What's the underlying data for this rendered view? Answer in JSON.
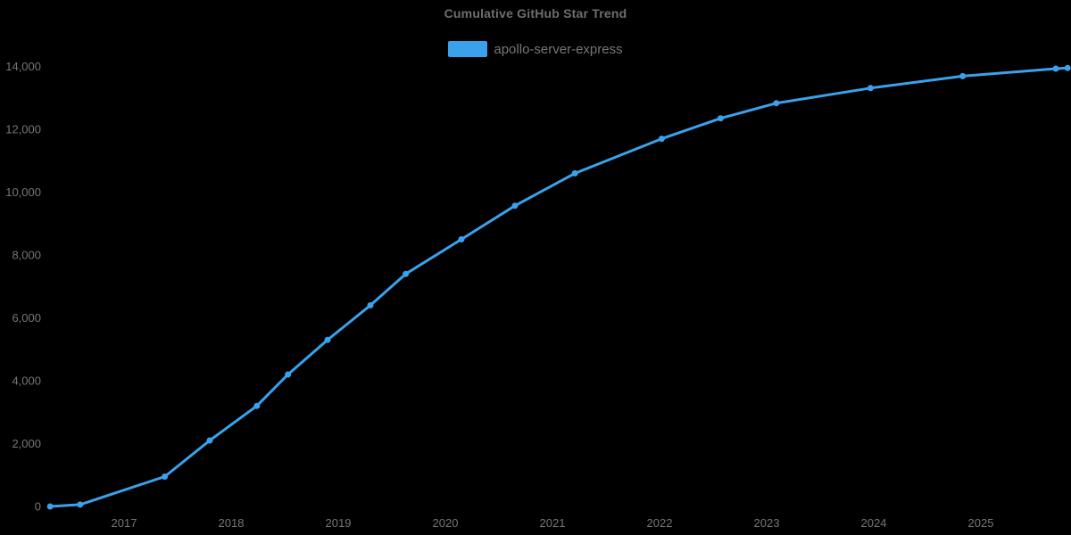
{
  "title": "Cumulative GitHub Star Trend",
  "legend": {
    "position": "top",
    "items": [
      {
        "label": "apollo-server-express",
        "color": "#3aa1ec"
      }
    ]
  },
  "colors": {
    "background": "#000000",
    "line": "#3aa1ec",
    "marker": "#3aa1ec",
    "title_text": "#6e6e6e",
    "axis_label_text": "#767676"
  },
  "chart_data": {
    "type": "line",
    "title": "Cumulative GitHub Star Trend",
    "xlabel": "",
    "ylabel": "",
    "grid": false,
    "legend_position": "top",
    "x_range": [
      2016.2,
      2025.9
    ],
    "y_range": [
      0,
      14000
    ],
    "x_ticks": [
      {
        "value": 2017,
        "label": "2017"
      },
      {
        "value": 2018,
        "label": "2018"
      },
      {
        "value": 2019,
        "label": "2019"
      },
      {
        "value": 2020,
        "label": "2020"
      },
      {
        "value": 2021,
        "label": "2021"
      },
      {
        "value": 2022,
        "label": "2022"
      },
      {
        "value": 2023,
        "label": "2023"
      },
      {
        "value": 2024,
        "label": "2024"
      },
      {
        "value": 2025,
        "label": "2025"
      }
    ],
    "y_ticks": [
      {
        "value": 0,
        "label": "0"
      },
      {
        "value": 2000,
        "label": "2,000"
      },
      {
        "value": 4000,
        "label": "4,000"
      },
      {
        "value": 6000,
        "label": "6,000"
      },
      {
        "value": 8000,
        "label": "8,000"
      },
      {
        "value": 10000,
        "label": "10,000"
      },
      {
        "value": 12000,
        "label": "12,000"
      },
      {
        "value": 14000,
        "label": "14,000"
      }
    ],
    "series": [
      {
        "name": "apollo-server-express",
        "color": "#3aa1ec",
        "points": [
          {
            "date": "2016-04",
            "x": 2016.31,
            "stars": 0
          },
          {
            "date": "2016-08",
            "x": 2016.59,
            "stars": 60
          },
          {
            "date": "2017-05",
            "x": 2017.38,
            "stars": 950
          },
          {
            "date": "2017-10",
            "x": 2017.8,
            "stars": 2100
          },
          {
            "date": "2018-03",
            "x": 2018.24,
            "stars": 3200
          },
          {
            "date": "2018-07",
            "x": 2018.53,
            "stars": 4200
          },
          {
            "date": "2018-11",
            "x": 2018.9,
            "stars": 5300
          },
          {
            "date": "2019-04",
            "x": 2019.3,
            "stars": 6400
          },
          {
            "date": "2019-08",
            "x": 2019.63,
            "stars": 7400
          },
          {
            "date": "2020-02",
            "x": 2020.15,
            "stars": 8500
          },
          {
            "date": "2020-08",
            "x": 2020.65,
            "stars": 9570
          },
          {
            "date": "2021-03",
            "x": 2021.21,
            "stars": 10600
          },
          {
            "date": "2022-01",
            "x": 2022.02,
            "stars": 11700
          },
          {
            "date": "2022-07",
            "x": 2022.57,
            "stars": 12350
          },
          {
            "date": "2023-02",
            "x": 2023.09,
            "stars": 12830
          },
          {
            "date": "2023-12",
            "x": 2023.97,
            "stars": 13310
          },
          {
            "date": "2024-11",
            "x": 2024.83,
            "stars": 13690
          },
          {
            "date": "2025-09",
            "x": 2025.7,
            "stars": 13930
          },
          {
            "date": "2025-10",
            "x": 2025.81,
            "stars": 13950
          }
        ]
      }
    ]
  }
}
